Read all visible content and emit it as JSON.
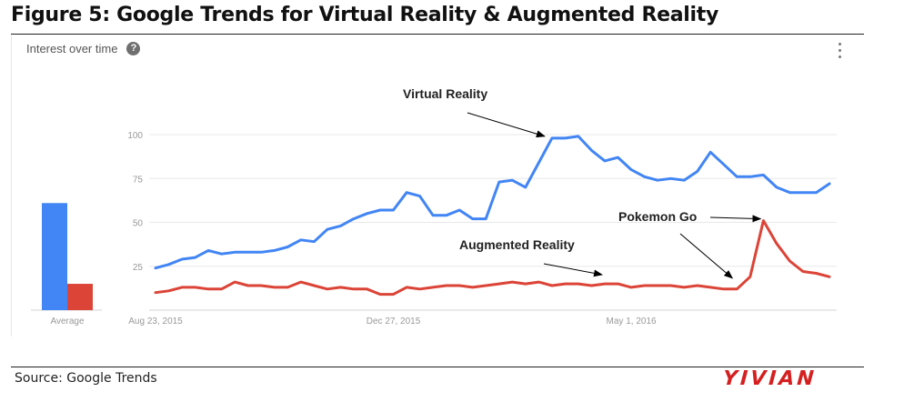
{
  "figure_title": "Figure 5: Google Trends for Virtual Reality & Augmented Reality",
  "panel": {
    "title": "Interest over time",
    "help_icon": "question-mark-icon",
    "menu_icon": "vertical-dots-icon"
  },
  "footer": {
    "source": "Source: Google Trends",
    "brand": "YIVIAN"
  },
  "colors": {
    "vr": "#4285f4",
    "ar": "#db4437",
    "grid": "#e8e8e8",
    "axis_text": "#999999"
  },
  "chart_data": {
    "type": "line",
    "ylim": [
      0,
      100
    ],
    "yticks": [
      25,
      50,
      75,
      100
    ],
    "xtick_labels": [
      "Aug 23, 2015",
      "Dec 27, 2015",
      "May 1, 2016"
    ],
    "xtick_index": [
      0,
      18,
      36
    ],
    "series": [
      {
        "name": "Virtual Reality",
        "color": "#4285f4",
        "values": [
          24,
          26,
          29,
          30,
          34,
          32,
          33,
          33,
          33,
          34,
          36,
          40,
          39,
          46,
          48,
          52,
          55,
          57,
          57,
          67,
          65,
          54,
          54,
          57,
          52,
          52,
          73,
          74,
          70,
          84,
          98,
          98,
          99,
          91,
          85,
          87,
          80,
          76,
          74,
          75,
          74,
          79,
          90,
          83,
          76,
          76,
          77,
          70,
          67,
          67,
          67,
          72
        ]
      },
      {
        "name": "Augmented Reality",
        "color": "#db4437",
        "values": [
          10,
          11,
          13,
          13,
          12,
          12,
          16,
          14,
          14,
          13,
          13,
          16,
          14,
          12,
          13,
          12,
          12,
          9,
          9,
          13,
          12,
          13,
          14,
          14,
          13,
          14,
          15,
          16,
          15,
          16,
          14,
          15,
          15,
          14,
          15,
          15,
          13,
          14,
          14,
          14,
          13,
          14,
          13,
          12,
          12,
          19,
          51,
          38,
          28,
          22,
          21,
          19
        ]
      }
    ],
    "average_bars": {
      "label": "Average",
      "values": [
        61,
        15
      ],
      "colors": [
        "#4285f4",
        "#db4437"
      ]
    },
    "annotations": [
      {
        "text": "Virtual Reality",
        "series": 0,
        "point_index": 30
      },
      {
        "text": "Augmented Reality",
        "series": 1,
        "point_index": 35
      },
      {
        "text": "Pokemon Go",
        "series": 1,
        "point_index": 46
      },
      {
        "text": "",
        "series": 1,
        "point_index": 44
      }
    ]
  }
}
